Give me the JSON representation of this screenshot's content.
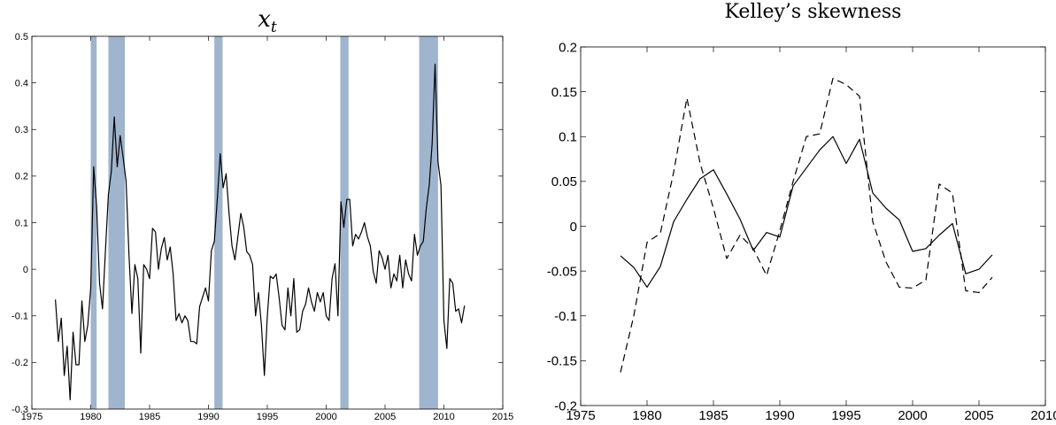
{
  "chart_data": [
    {
      "type": "line",
      "title": "x",
      "title_subscript": "t",
      "xlabel": "",
      "ylabel": "",
      "xlim": [
        1975,
        2015
      ],
      "ylim": [
        -0.3,
        0.5
      ],
      "xticks": [
        1975,
        1980,
        1985,
        1990,
        1995,
        2000,
        2005,
        2010,
        2015
      ],
      "yticks": [
        -0.3,
        -0.2,
        -0.1,
        0,
        0.1,
        0.2,
        0.3,
        0.4,
        0.5
      ],
      "xtick_labels": [
        "1975",
        "1980",
        "1985",
        "1990",
        "1995",
        "2000",
        "2005",
        "2010",
        "2015"
      ],
      "ytick_labels": [
        "-0.3",
        "-0.2",
        "-0.1",
        "0",
        "0.1",
        "0.2",
        "0.3",
        "0.4",
        "0.5"
      ],
      "grid": false,
      "shaded_periods": [
        [
          1980.0,
          1980.5
        ],
        [
          1981.5,
          1982.9
        ],
        [
          1990.5,
          1991.2
        ],
        [
          2001.2,
          2001.9
        ],
        [
          2007.9,
          2009.5
        ]
      ],
      "shade_color": "#9fb4cd",
      "series": [
        {
          "color": "#000000",
          "style": "solid",
          "x": [
            1977.0,
            1977.25,
            1977.5,
            1977.75,
            1978.0,
            1978.25,
            1978.5,
            1978.75,
            1979.0,
            1979.25,
            1979.5,
            1979.75,
            1980.0,
            1980.25,
            1980.5,
            1980.75,
            1981.0,
            1981.25,
            1981.5,
            1981.75,
            1982.0,
            1982.25,
            1982.5,
            1982.75,
            1983.0,
            1983.25,
            1983.5,
            1983.75,
            1984.0,
            1984.25,
            1984.5,
            1984.75,
            1985.0,
            1985.25,
            1985.5,
            1985.75,
            1986.0,
            1986.25,
            1986.5,
            1986.75,
            1987.0,
            1987.25,
            1987.5,
            1987.75,
            1988.0,
            1988.25,
            1988.5,
            1988.75,
            1989.0,
            1989.25,
            1989.5,
            1989.75,
            1990.0,
            1990.25,
            1990.5,
            1990.75,
            1991.0,
            1991.25,
            1991.5,
            1991.75,
            1992.0,
            1992.25,
            1992.5,
            1992.75,
            1993.0,
            1993.25,
            1993.5,
            1993.75,
            1994.0,
            1994.25,
            1994.5,
            1994.75,
            1995.0,
            1995.25,
            1995.5,
            1995.75,
            1996.0,
            1996.25,
            1996.5,
            1996.75,
            1997.0,
            1997.25,
            1997.5,
            1997.75,
            1998.0,
            1998.25,
            1998.5,
            1998.75,
            1999.0,
            1999.25,
            1999.5,
            1999.75,
            2000.0,
            2000.25,
            2000.5,
            2000.75,
            2001.0,
            2001.25,
            2001.5,
            2001.75,
            2002.0,
            2002.25,
            2002.5,
            2002.75,
            2003.0,
            2003.25,
            2003.5,
            2003.75,
            2004.0,
            2004.25,
            2004.5,
            2004.75,
            2005.0,
            2005.25,
            2005.5,
            2005.75,
            2006.0,
            2006.25,
            2006.5,
            2006.75,
            2007.0,
            2007.25,
            2007.5,
            2007.75,
            2008.0,
            2008.25,
            2008.5,
            2008.75,
            2009.0,
            2009.25,
            2009.5,
            2009.75,
            2010.0,
            2010.25,
            2010.5,
            2010.75,
            2011.0,
            2011.25,
            2011.5,
            2011.75
          ],
          "y": [
            -0.065,
            -0.155,
            -0.105,
            -0.228,
            -0.165,
            -0.28,
            -0.135,
            -0.205,
            -0.205,
            -0.068,
            -0.155,
            -0.12,
            -0.04,
            0.22,
            0.135,
            -0.03,
            -0.085,
            0.04,
            0.16,
            0.21,
            0.327,
            0.22,
            0.287,
            0.24,
            0.19,
            0.03,
            -0.095,
            0.01,
            -0.02,
            -0.18,
            0.01,
            0.0,
            -0.02,
            0.088,
            0.08,
            0.0,
            0.045,
            0.068,
            0.02,
            0.048,
            -0.01,
            -0.11,
            -0.095,
            -0.115,
            -0.1,
            -0.11,
            -0.155,
            -0.155,
            -0.16,
            -0.08,
            -0.06,
            -0.04,
            -0.068,
            0.04,
            0.06,
            0.15,
            0.248,
            0.175,
            0.205,
            0.12,
            0.05,
            0.02,
            0.07,
            0.12,
            0.09,
            0.038,
            0.03,
            0.01,
            -0.1,
            -0.05,
            -0.12,
            -0.228,
            -0.1,
            -0.015,
            -0.02,
            -0.01,
            -0.06,
            -0.12,
            -0.13,
            -0.04,
            -0.1,
            -0.02,
            -0.135,
            -0.13,
            -0.09,
            -0.075,
            -0.04,
            -0.07,
            -0.09,
            -0.05,
            -0.07,
            -0.05,
            -0.1,
            -0.11,
            -0.02,
            0.012,
            -0.1,
            0.145,
            0.09,
            0.15,
            0.15,
            0.05,
            0.075,
            0.065,
            0.08,
            0.1,
            0.07,
            0.05,
            -0.005,
            -0.03,
            0.04,
            0.025,
            0.0,
            0.03,
            -0.04,
            -0.01,
            -0.025,
            0.03,
            -0.04,
            0.02,
            -0.01,
            -0.025,
            0.075,
            0.03,
            0.05,
            0.06,
            0.13,
            0.18,
            0.27,
            0.44,
            0.23,
            0.18,
            -0.11,
            -0.17,
            -0.02,
            -0.03,
            -0.09,
            -0.085,
            -0.115,
            -0.078
          ]
        }
      ]
    },
    {
      "type": "line",
      "title": "Kelley’s skewness",
      "xlabel": "",
      "ylabel": "",
      "xlim": [
        1975,
        2010
      ],
      "ylim": [
        -0.2,
        0.2
      ],
      "xticks": [
        1975,
        1980,
        1985,
        1990,
        1995,
        2000,
        2005,
        2010
      ],
      "yticks": [
        -0.2,
        -0.15,
        -0.1,
        -0.05,
        0,
        0.05,
        0.1,
        0.15,
        0.2
      ],
      "xtick_labels": [
        "1975",
        "1980",
        "1985",
        "1990",
        "1995",
        "2000",
        "2005",
        "2010"
      ],
      "ytick_labels": [
        "-0.2",
        "-0.15",
        "-0.1",
        "-0.05",
        "0",
        "0.05",
        "0.1",
        "0.15",
        "0.2"
      ],
      "grid": false,
      "series": [
        {
          "color": "#000000",
          "style": "solid",
          "x": [
            1978,
            1979,
            1980,
            1981,
            1982,
            1983,
            1984,
            1985,
            1986,
            1987,
            1988,
            1989,
            1990,
            1991,
            1992,
            1993,
            1994,
            1995,
            1996,
            1997,
            1998,
            1999,
            2000,
            2001,
            2002,
            2003,
            2004,
            2005,
            2006
          ],
          "y": [
            -0.033,
            -0.046,
            -0.068,
            -0.045,
            0.005,
            0.03,
            0.053,
            0.063,
            0.036,
            0.008,
            -0.027,
            -0.007,
            -0.012,
            0.045,
            0.065,
            0.085,
            0.1,
            0.07,
            0.097,
            0.037,
            0.02,
            0.007,
            -0.028,
            -0.025,
            -0.01,
            0.003,
            -0.053,
            -0.048,
            -0.032
          ]
        },
        {
          "color": "#000000",
          "style": "dashed",
          "x": [
            1978,
            1979,
            1980,
            1981,
            1982,
            1983,
            1984,
            1985,
            1986,
            1987,
            1988,
            1989,
            1990,
            1991,
            1992,
            1993,
            1994,
            1995,
            1996,
            1997,
            1998,
            1999,
            2000,
            2001,
            2002,
            2003,
            2004,
            2005,
            2006
          ],
          "y": [
            -0.163,
            -0.1,
            -0.018,
            -0.008,
            0.06,
            0.143,
            0.07,
            0.02,
            -0.036,
            -0.01,
            -0.025,
            -0.055,
            -0.005,
            0.05,
            0.1,
            0.103,
            0.165,
            0.158,
            0.145,
            0.005,
            -0.04,
            -0.068,
            -0.069,
            -0.06,
            0.047,
            0.037,
            -0.072,
            -0.074,
            -0.057
          ]
        }
      ]
    }
  ]
}
